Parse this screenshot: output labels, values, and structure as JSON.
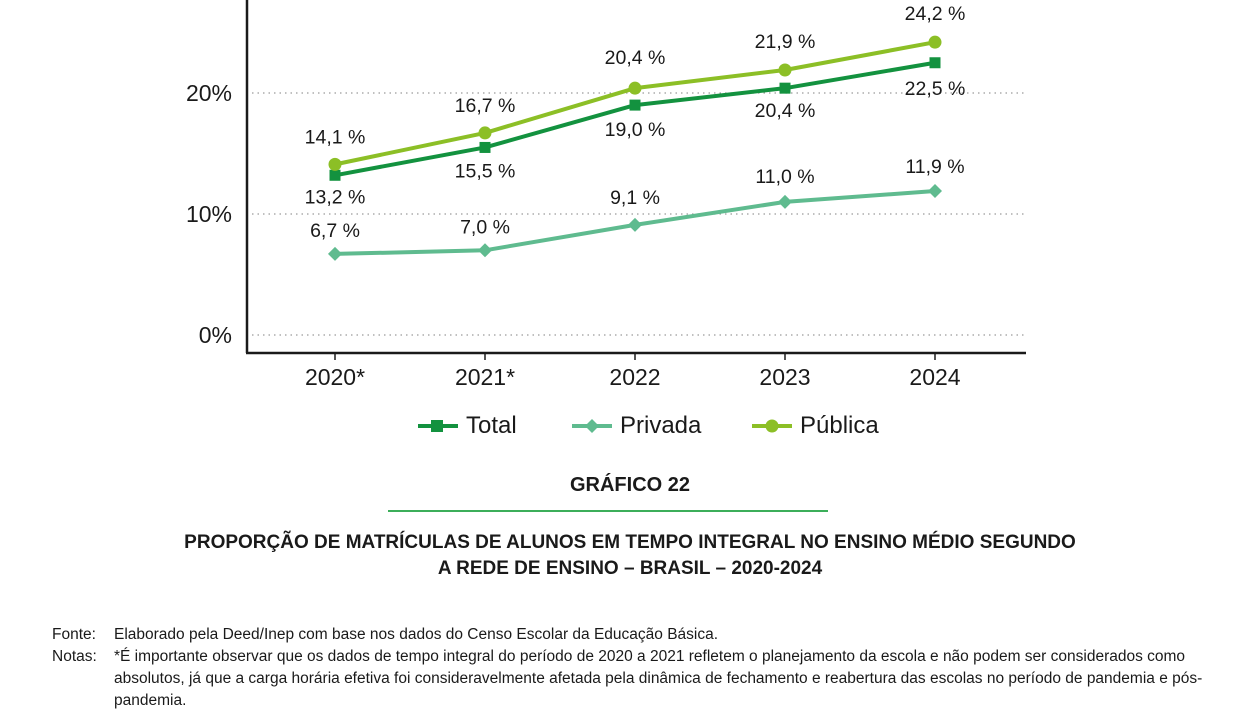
{
  "chart_data": {
    "type": "line",
    "categories": [
      "2020*",
      "2021*",
      "2022",
      "2023",
      "2024"
    ],
    "y_ticks": [
      "0%",
      "10%",
      "20%"
    ],
    "ylim": [
      0,
      27
    ],
    "grid": "horizontal dotted",
    "legend_placement": "bottom-center",
    "series": [
      {
        "name": "Total",
        "values": [
          13.2,
          15.5,
          19.0,
          20.4,
          22.5
        ],
        "labels": [
          "13,2 %",
          "15,5 %",
          "19,0 %",
          "20,4 %",
          "22,5 %"
        ],
        "color": "#13923f",
        "marker": "square"
      },
      {
        "name": "Privada",
        "values": [
          6.7,
          7.0,
          9.1,
          11.0,
          11.9
        ],
        "labels": [
          "6,7 %",
          "7,0 %",
          "9,1 %",
          "11,0 %",
          "11,9 %"
        ],
        "color": "#5fbb8f",
        "marker": "diamond"
      },
      {
        "name": "Pública",
        "values": [
          14.1,
          16.7,
          20.4,
          21.9,
          24.2
        ],
        "labels": [
          "14,1 %",
          "16,7 %",
          "20,4 %",
          "21,9 %",
          "24,2 %"
        ],
        "color": "#8cbf26",
        "marker": "circle"
      }
    ]
  },
  "figure": {
    "label": "GRÁFICO 22",
    "caption_line1": "PROPORÇÃO DE MATRÍCULAS DE ALUNOS EM TEMPO INTEGRAL NO ENSINO MÉDIO SEGUNDO",
    "caption_line2": "A REDE DE ENSINO – BRASIL – 2020-2024"
  },
  "notes": {
    "source_label": "Fonte:",
    "source_text": "Elaborado pela Deed/Inep com base nos dados do Censo Escolar da Educação Básica.",
    "notes_label": "Notas:",
    "notes_text": "*É importante observar que os dados de tempo integral do período de 2020 a 2021 refletem o planejamento da escola e não podem ser considerados como absolutos, já que a carga horária efetiva foi consideravelmente afetada pela dinâmica de fechamento e reabertura das escolas no período de pandemia e pós-pandemia."
  }
}
